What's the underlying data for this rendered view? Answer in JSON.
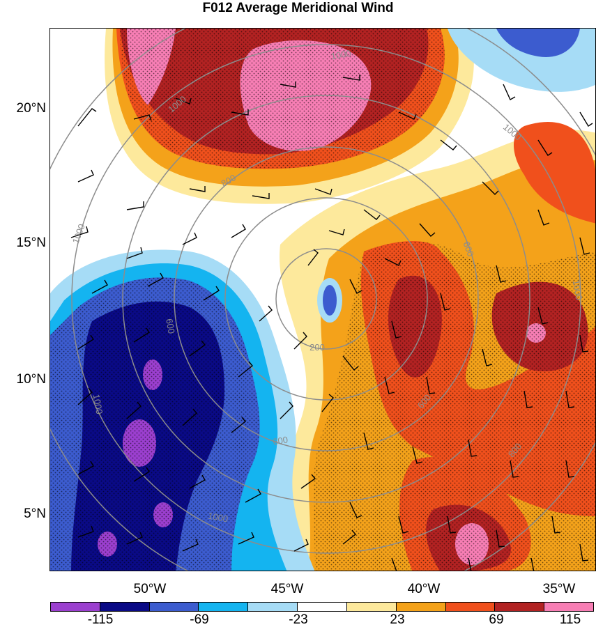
{
  "title": "F012 Average Meridional Wind",
  "lat_labels": [
    "20°N",
    "15°N",
    "10°N",
    "5°N"
  ],
  "lon_labels": [
    "50°W",
    "45°W",
    "40°W",
    "35°W"
  ],
  "colorbar": {
    "colors": [
      "#9b3fcf",
      "#0a0a86",
      "#3c5ccf",
      "#14b4f0",
      "#a6dcf6",
      "#ffffff",
      "#fde99c",
      "#f4a21a",
      "#f0501c",
      "#b22222",
      "#f77eb4"
    ],
    "labels": [
      "-115",
      "-69",
      "-23",
      "23",
      "69",
      "115"
    ]
  },
  "contour_labels": [
    "1000",
    "1000",
    "1000",
    "1000",
    "1000",
    "1000",
    "1000",
    "800",
    "800",
    "600",
    "600",
    "600",
    "600",
    "200"
  ],
  "legend_colors": {
    "strong_positive": "#f77eb4",
    "positive_high": "#b22222",
    "positive": "#f0501c",
    "moderate_positive": "#f4a21a",
    "weak_positive": "#fde99c",
    "neutral": "#ffffff",
    "weak_negative": "#a6dcf6",
    "moderate_negative": "#14b4f0",
    "negative": "#3c5ccf",
    "strong_negative": "#0a0a86",
    "extreme_negative": "#9b3fcf"
  }
}
